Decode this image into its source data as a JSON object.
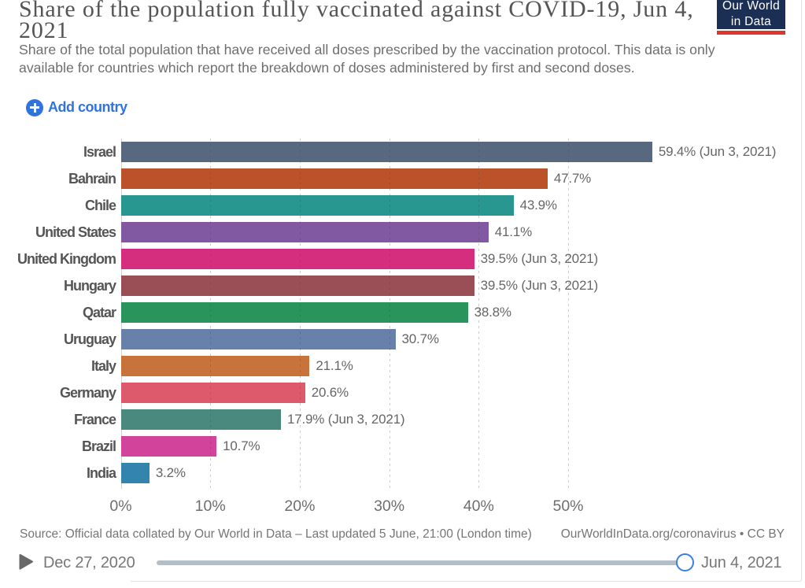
{
  "header": {
    "title": "Share of the population fully vaccinated against COVID-19, Jun 4, 2021",
    "subtitle": "Share of the total population that have received all doses prescribed by the vaccination protocol. This data is only available for countries which report the breakdown of doses administered by first and second doses."
  },
  "logo": {
    "line1": "Our World",
    "line2": "in Data",
    "background_color": "#1b2e54",
    "underline_color": "#e0342c"
  },
  "controls": {
    "add_country_label": "Add country",
    "accent_color": "#3173dc"
  },
  "chart_data": {
    "type": "bar",
    "orientation": "horizontal",
    "title": "Share of the population fully vaccinated against COVID-19, Jun 4, 2021",
    "xlabel": "",
    "ylabel": "",
    "xlim": [
      0,
      59.4
    ],
    "x_ticks": [
      {
        "value": 0,
        "label": "0%"
      },
      {
        "value": 10,
        "label": "10%"
      },
      {
        "value": 20,
        "label": "20%"
      },
      {
        "value": 30,
        "label": "30%"
      },
      {
        "value": 40,
        "label": "40%"
      },
      {
        "value": 50,
        "label": "50%"
      }
    ],
    "grid": "dashed-vertical",
    "legend": "none",
    "categories": [
      "Israel",
      "Bahrain",
      "Chile",
      "United States",
      "United Kingdom",
      "Hungary",
      "Qatar",
      "Uruguay",
      "Italy",
      "Germany",
      "France",
      "Brazil",
      "India"
    ],
    "values": [
      59.4,
      47.7,
      43.9,
      41.1,
      39.5,
      39.5,
      38.8,
      30.7,
      21.1,
      20.6,
      17.9,
      10.7,
      3.2
    ],
    "bars": [
      {
        "name": "Israel",
        "value": 59.4,
        "label": "59.4% (Jun 3, 2021)",
        "color": "#58687e"
      },
      {
        "name": "Bahrain",
        "value": 47.7,
        "label": "47.7%",
        "color": "#bb522a"
      },
      {
        "name": "Chile",
        "value": 43.9,
        "label": "43.9%",
        "color": "#27978f"
      },
      {
        "name": "United States",
        "value": 41.1,
        "label": "41.1%",
        "color": "#8159a2"
      },
      {
        "name": "United Kingdom",
        "value": 39.5,
        "label": "39.5% (Jun 3, 2021)",
        "color": "#d52e7e"
      },
      {
        "name": "Hungary",
        "value": 39.5,
        "label": "39.5% (Jun 3, 2021)",
        "color": "#9a4e55"
      },
      {
        "name": "Qatar",
        "value": 38.8,
        "label": "38.8%",
        "color": "#29945b"
      },
      {
        "name": "Uruguay",
        "value": 30.7,
        "label": "30.7%",
        "color": "#6781ab"
      },
      {
        "name": "Italy",
        "value": 21.1,
        "label": "21.1%",
        "color": "#c9733c"
      },
      {
        "name": "Germany",
        "value": 20.6,
        "label": "20.6%",
        "color": "#dc5a6b"
      },
      {
        "name": "France",
        "value": 17.9,
        "label": "17.9% (Jun 3, 2021)",
        "color": "#49897e"
      },
      {
        "name": "Brazil",
        "value": 10.7,
        "label": "10.7%",
        "color": "#d2439b"
      },
      {
        "name": "India",
        "value": 3.2,
        "label": "3.2%",
        "color": "#3385ad"
      }
    ]
  },
  "footer": {
    "source": "Source: Official data collated by Our World in Data – Last updated 5 June, 21:00 (London time)",
    "license": "OurWorldInData.org/coronavirus • CC BY"
  },
  "timeline": {
    "start_label": "Dec 27, 2020",
    "end_label": "Jun 4, 2021"
  }
}
